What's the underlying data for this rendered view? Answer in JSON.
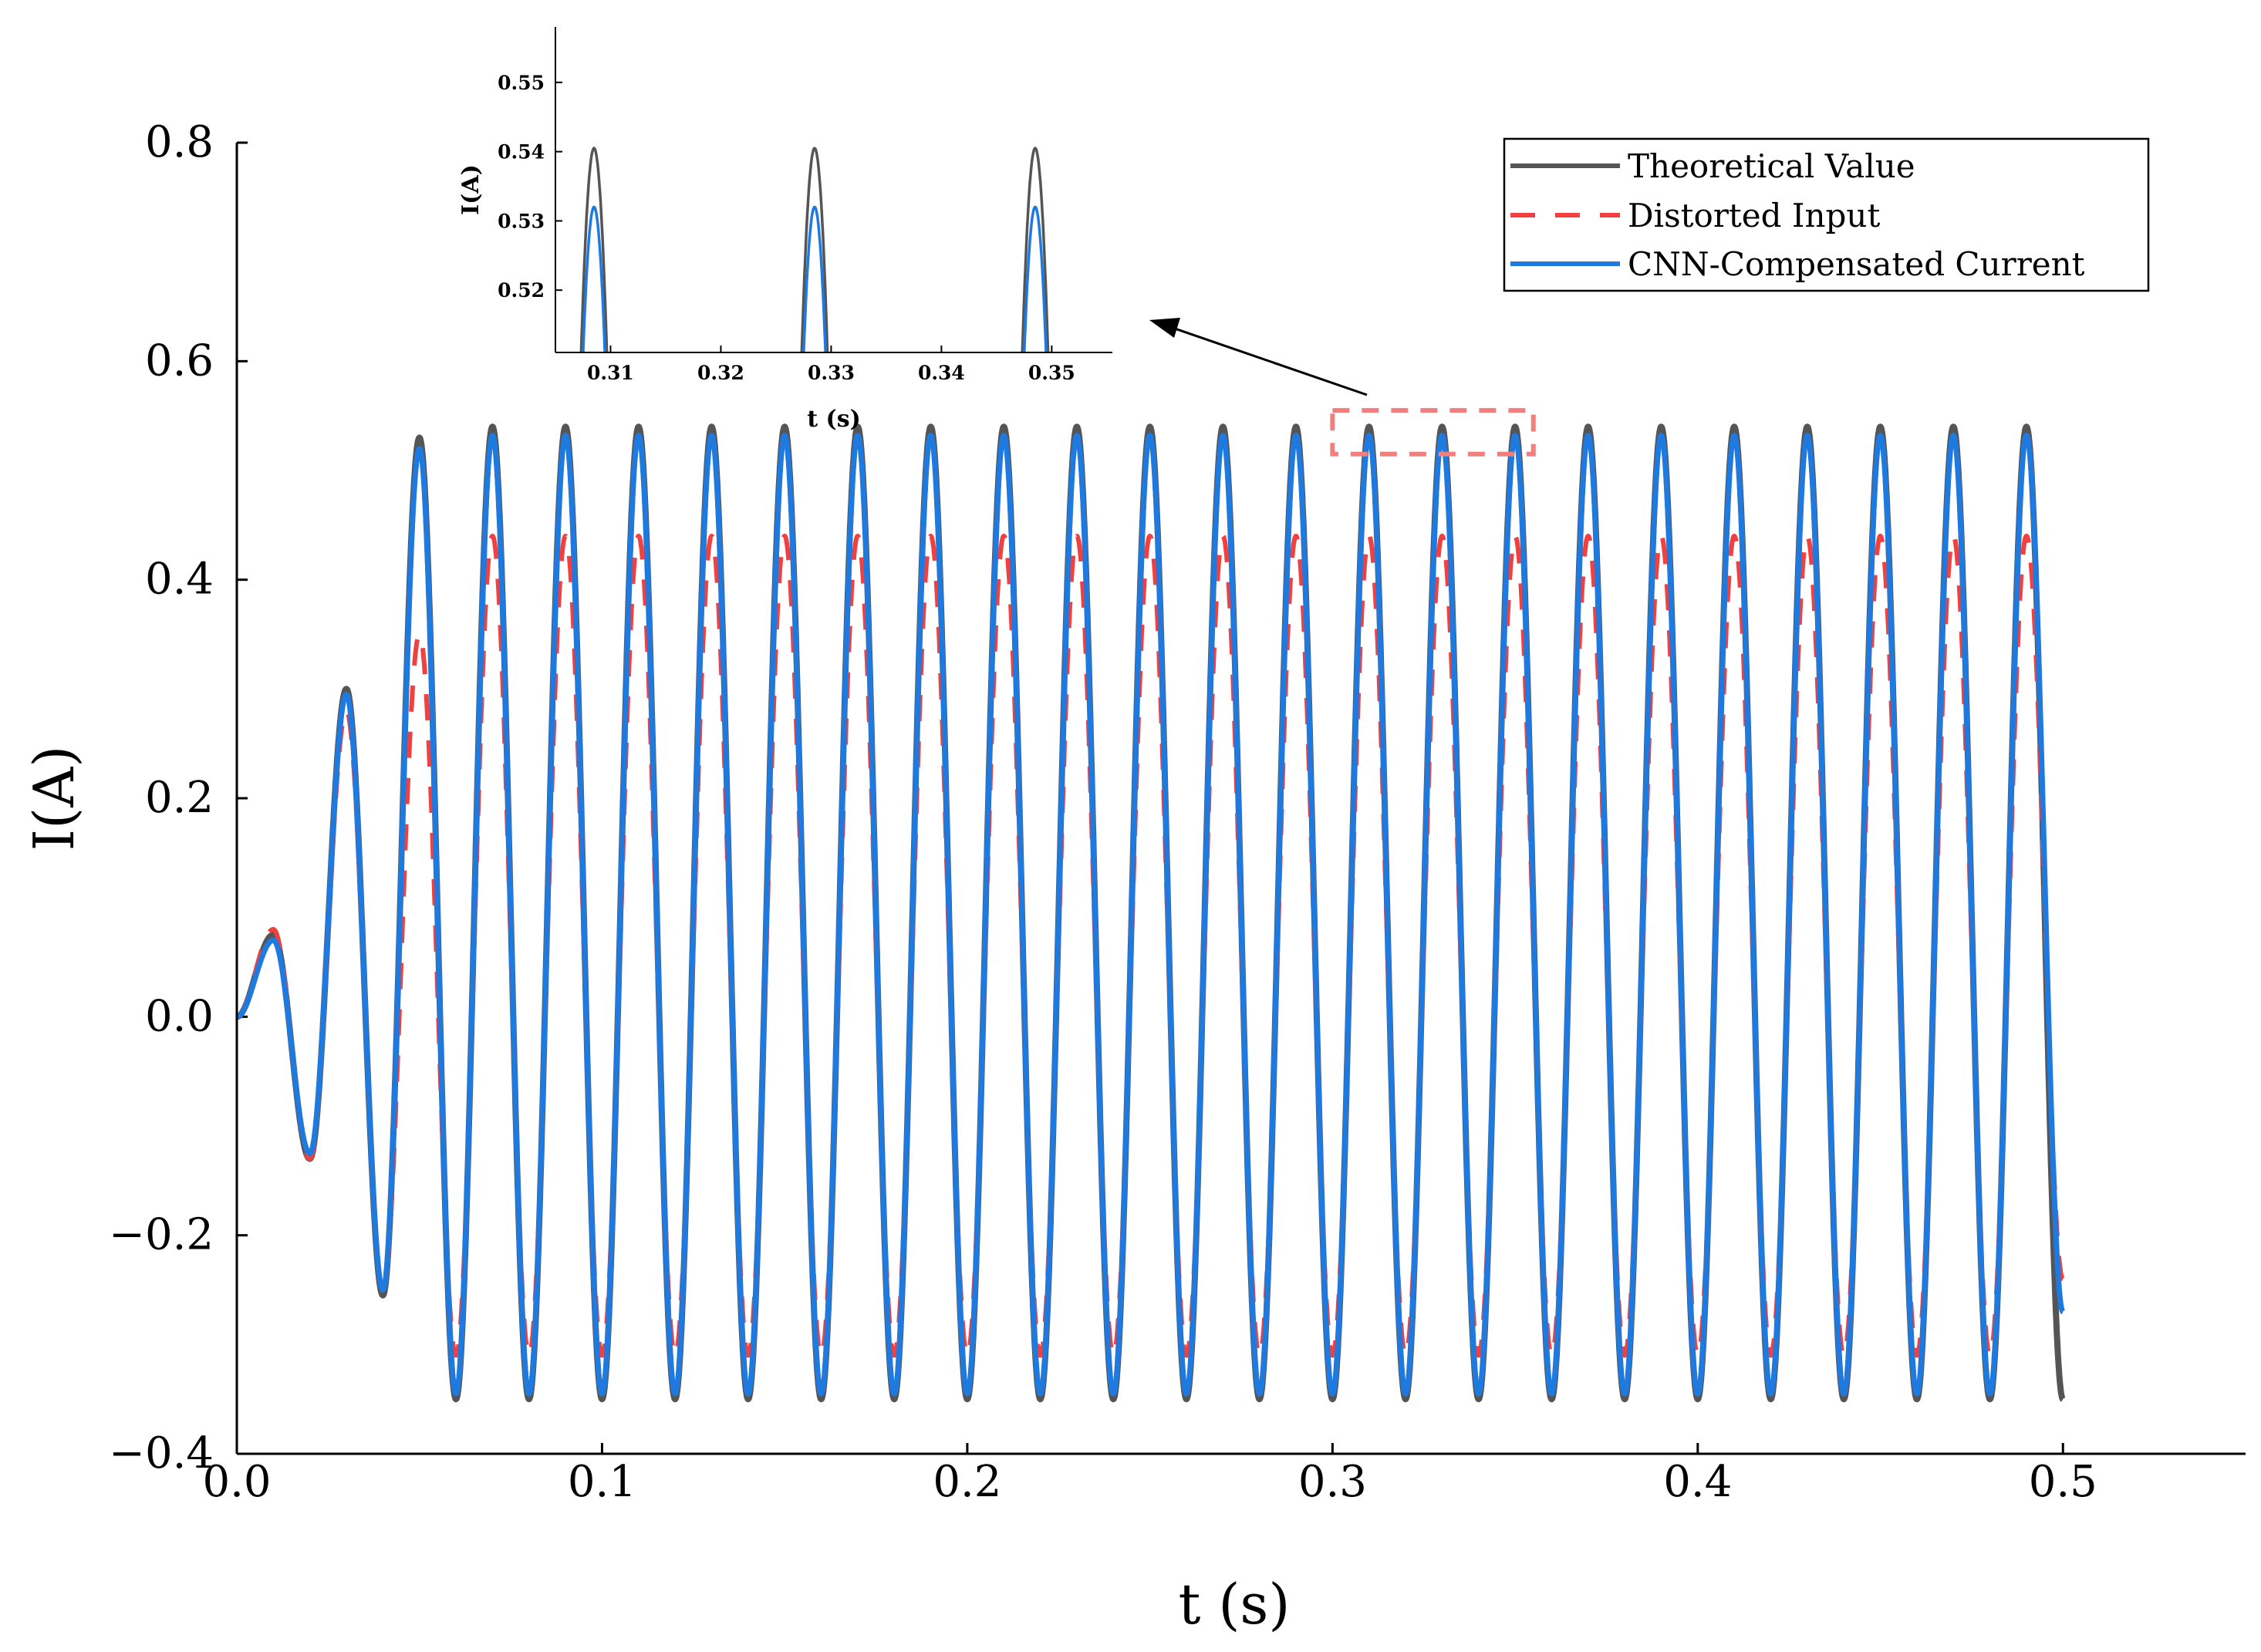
{
  "chart_data": [
    {
      "type": "line",
      "role": "main",
      "xlabel": "t (s)",
      "ylabel": "I(A)",
      "xlim": [
        0.0,
        0.55
      ],
      "ylim": [
        -0.4,
        0.8
      ],
      "xticks": [
        0.0,
        0.1,
        0.2,
        0.3,
        0.4,
        0.5
      ],
      "xtick_labels": [
        "0.0",
        "0.1",
        "0.2",
        "0.3",
        "0.4",
        "0.5"
      ],
      "yticks": [
        -0.4,
        -0.2,
        0.0,
        0.2,
        0.4,
        0.6,
        0.8
      ],
      "ytick_labels": [
        "−0.4",
        "−0.2",
        "0.0",
        "0.2",
        "0.4",
        "0.6",
        "0.8"
      ],
      "frequency_hz": 50,
      "t_end": 0.5,
      "legend_position": "top-right",
      "series": [
        {
          "name": "Theoretical Value",
          "color": "#555555",
          "style": "solid",
          "peaks": [
            0.075,
            0.3,
            0.53,
            0.54
          ],
          "troughs": [
            -0.13,
            -0.255,
            -0.35
          ]
        },
        {
          "name": "Distorted Input",
          "color": "#f04040",
          "style": "dashed",
          "peaks": [
            0.08,
            0.28,
            0.35,
            0.44,
            0.44
          ],
          "troughs": [
            -0.13,
            -0.25,
            -0.31
          ],
          "end_value": -0.24
        },
        {
          "name": "CNN-Compensated Current",
          "color": "#1f7ae0",
          "style": "solid",
          "peaks": [
            0.07,
            0.295,
            0.52,
            0.532
          ],
          "troughs": [
            -0.125,
            -0.25,
            -0.345
          ],
          "end_value": -0.27
        }
      ],
      "zoom_box": {
        "x": [
          0.3,
          0.355
        ],
        "y": [
          0.515,
          0.555
        ]
      }
    },
    {
      "type": "line",
      "role": "inset",
      "xlabel": "t (s)",
      "ylabel": "I(A)",
      "xlim": [
        0.305,
        0.3555
      ],
      "ylim": [
        0.511,
        0.558
      ],
      "xticks": [
        0.31,
        0.32,
        0.33,
        0.34,
        0.35
      ],
      "xtick_labels": [
        "0.31",
        "0.32",
        "0.33",
        "0.34",
        "0.35"
      ],
      "yticks": [
        0.52,
        0.53,
        0.54,
        0.55
      ],
      "ytick_labels": [
        "0.52",
        "0.53",
        "0.54",
        "0.55"
      ],
      "peak_times": [
        0.3085,
        0.3285,
        0.3485
      ],
      "series": [
        {
          "name": "Theoretical Value",
          "color": "#555555",
          "peak": 0.5405
        },
        {
          "name": "CNN-Compensated Current",
          "color": "#1f7ae0",
          "peak": 0.532
        }
      ]
    }
  ]
}
